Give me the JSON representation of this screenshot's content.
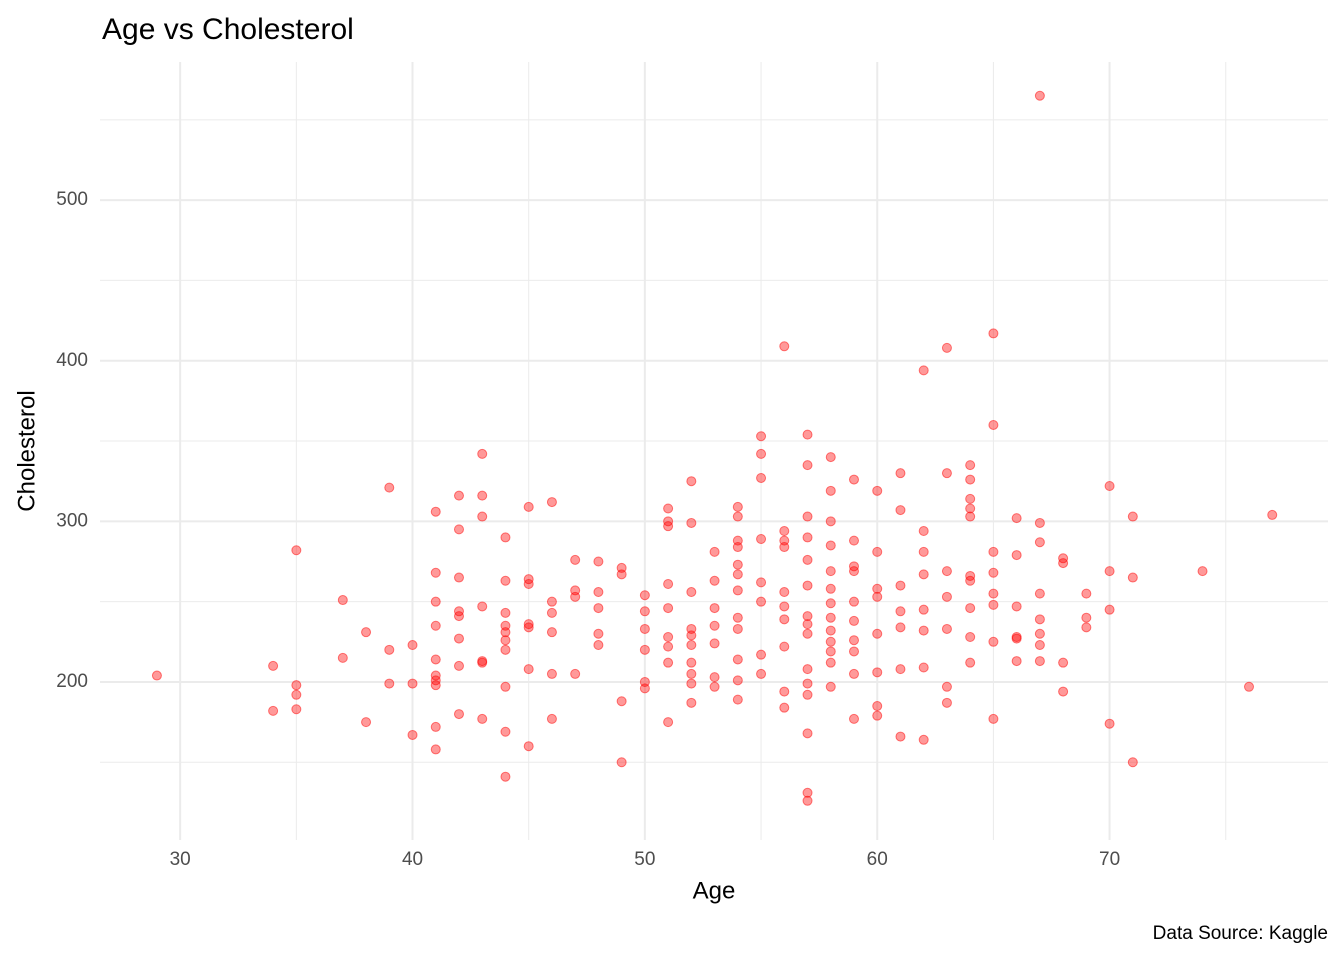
{
  "chart_data": {
    "type": "scatter",
    "title": "Age vs Cholesterol",
    "caption": "Data Source: Kaggle",
    "x_label": "Age",
    "y_label": "Cholesterol",
    "color": "#ff0000",
    "grid": true,
    "xlim": [
      26.55,
      79.4
    ],
    "ylim": [
      101.6,
      586
    ],
    "xticks": [
      30,
      40,
      50,
      60,
      70
    ],
    "yticks": [
      200,
      300,
      400,
      500
    ],
    "x": [
      29,
      34,
      34,
      35,
      35,
      35,
      35,
      37,
      37,
      38,
      38,
      39,
      39,
      39,
      40,
      40,
      40,
      41,
      41,
      41,
      41,
      41,
      41,
      41,
      41,
      41,
      41,
      42,
      42,
      42,
      42,
      42,
      42,
      42,
      42,
      43,
      43,
      43,
      43,
      43,
      43,
      43,
      44,
      44,
      44,
      44,
      44,
      44,
      44,
      44,
      44,
      44,
      45,
      45,
      45,
      45,
      45,
      45,
      45,
      46,
      46,
      46,
      46,
      46,
      46,
      47,
      47,
      47,
      47,
      48,
      48,
      48,
      48,
      48,
      49,
      49,
      49,
      49,
      50,
      50,
      50,
      50,
      50,
      50,
      51,
      51,
      51,
      51,
      51,
      51,
      51,
      51,
      51,
      52,
      52,
      52,
      52,
      52,
      52,
      52,
      52,
      52,
      52,
      53,
      53,
      53,
      53,
      53,
      53,
      53,
      54,
      54,
      54,
      54,
      54,
      54,
      54,
      54,
      54,
      54,
      54,
      54,
      55,
      55,
      55,
      55,
      55,
      55,
      55,
      55,
      56,
      56,
      56,
      56,
      56,
      56,
      56,
      56,
      56,
      56,
      57,
      57,
      57,
      57,
      57,
      57,
      57,
      57,
      57,
      57,
      57,
      57,
      57,
      57,
      57,
      58,
      58,
      58,
      58,
      58,
      58,
      58,
      58,
      58,
      58,
      58,
      58,
      58,
      59,
      59,
      59,
      59,
      59,
      59,
      59,
      59,
      59,
      59,
      60,
      60,
      60,
      60,
      60,
      60,
      60,
      60,
      61,
      61,
      61,
      61,
      61,
      61,
      61,
      62,
      62,
      62,
      62,
      62,
      62,
      62,
      62,
      63,
      63,
      63,
      63,
      63,
      63,
      63,
      64,
      64,
      64,
      64,
      64,
      64,
      64,
      64,
      64,
      64,
      65,
      65,
      65,
      65,
      65,
      65,
      65,
      65,
      66,
      66,
      66,
      66,
      66,
      66,
      67,
      67,
      67,
      67,
      67,
      67,
      67,
      67,
      68,
      68,
      68,
      68,
      69,
      69,
      69,
      70,
      70,
      70,
      70,
      71,
      71,
      71,
      74,
      76,
      77
    ],
    "values": [
      204,
      210,
      182,
      282,
      198,
      192,
      183,
      251,
      215,
      231,
      175,
      321,
      220,
      199,
      223,
      199,
      167,
      306,
      268,
      250,
      235,
      214,
      204,
      201,
      198,
      172,
      158,
      316,
      295,
      265,
      244,
      241,
      227,
      210,
      180,
      342,
      316,
      303,
      247,
      213,
      212,
      177,
      290,
      263,
      243,
      235,
      231,
      226,
      220,
      197,
      169,
      141,
      309,
      264,
      261,
      236,
      234,
      208,
      160,
      312,
      250,
      243,
      231,
      205,
      177,
      276,
      257,
      253,
      205,
      275,
      256,
      246,
      230,
      223,
      271,
      267,
      188,
      150,
      254,
      244,
      233,
      220,
      200,
      196,
      308,
      300,
      297,
      261,
      246,
      228,
      222,
      212,
      175,
      325,
      299,
      256,
      233,
      229,
      223,
      212,
      205,
      199,
      187,
      281,
      263,
      246,
      235,
      224,
      203,
      197,
      309,
      303,
      288,
      284,
      273,
      267,
      257,
      240,
      233,
      214,
      201,
      189,
      353,
      342,
      327,
      289,
      262,
      250,
      217,
      205,
      409,
      294,
      288,
      284,
      256,
      247,
      239,
      222,
      194,
      184,
      354,
      335,
      303,
      290,
      276,
      260,
      241,
      236,
      230,
      208,
      199,
      192,
      168,
      131,
      126,
      340,
      319,
      300,
      285,
      269,
      258,
      249,
      240,
      232,
      225,
      219,
      212,
      197,
      326,
      288,
      272,
      269,
      250,
      238,
      226,
      219,
      205,
      177,
      319,
      281,
      258,
      253,
      230,
      206,
      185,
      179,
      330,
      307,
      260,
      244,
      234,
      208,
      166,
      394,
      294,
      281,
      267,
      245,
      232,
      209,
      164,
      408,
      330,
      269,
      253,
      233,
      197,
      187,
      335,
      326,
      314,
      308,
      303,
      266,
      263,
      246,
      228,
      212,
      417,
      360,
      281,
      268,
      255,
      248,
      225,
      177,
      302,
      279,
      247,
      228,
      227,
      213,
      565,
      299,
      287,
      255,
      239,
      230,
      223,
      213,
      277,
      274,
      212,
      194,
      255,
      240,
      234,
      322,
      269,
      245,
      174,
      303,
      265,
      150,
      269,
      197,
      304
    ]
  }
}
